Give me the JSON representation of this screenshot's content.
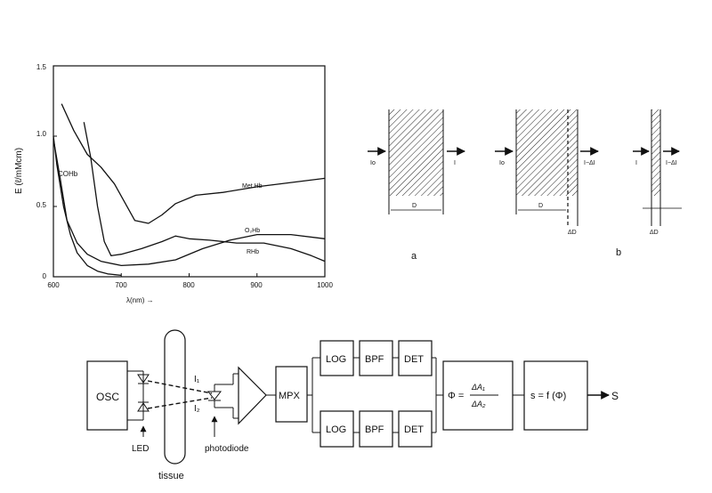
{
  "spectrum_chart": {
    "ylabel": "E (ℓ/mMcm)",
    "xlabel": "λ(nm) →",
    "x_ticks": [
      "600",
      "700",
      "800",
      "900",
      "1000"
    ],
    "y_ticks": [
      "0",
      "0.5",
      "1.0",
      "1.5"
    ],
    "curve_labels": {
      "cohb": "COHb",
      "methb": "Met Hb",
      "o2hb": "O₂Hb",
      "rhb": "RHb"
    }
  },
  "chart_data": {
    "type": "line",
    "xlabel": "λ(nm) →",
    "ylabel": "E (ℓ/mMcm)",
    "xlim": [
      600,
      1000
    ],
    "ylim": [
      0,
      1.5
    ],
    "grid": false,
    "series": [
      {
        "name": "COHb",
        "points": [
          [
            600,
            1.0
          ],
          [
            605,
            0.8
          ],
          [
            615,
            0.5
          ],
          [
            625,
            0.3
          ],
          [
            635,
            0.17
          ],
          [
            650,
            0.08
          ],
          [
            665,
            0.04
          ],
          [
            680,
            0.02
          ],
          [
            700,
            0.01
          ]
        ]
      },
      {
        "name": "Met Hb",
        "points": [
          [
            612,
            1.23
          ],
          [
            630,
            1.04
          ],
          [
            650,
            0.87
          ],
          [
            670,
            0.78
          ],
          [
            690,
            0.66
          ],
          [
            705,
            0.53
          ],
          [
            720,
            0.4
          ],
          [
            740,
            0.38
          ],
          [
            760,
            0.44
          ],
          [
            780,
            0.52
          ],
          [
            810,
            0.58
          ],
          [
            850,
            0.6
          ],
          [
            900,
            0.64
          ],
          [
            950,
            0.67
          ],
          [
            1000,
            0.7
          ]
        ]
      },
      {
        "name": "O₂Hb",
        "points": [
          [
            600,
            0.98
          ],
          [
            610,
            0.7
          ],
          [
            620,
            0.4
          ],
          [
            635,
            0.24
          ],
          [
            650,
            0.16
          ],
          [
            670,
            0.11
          ],
          [
            700,
            0.08
          ],
          [
            740,
            0.09
          ],
          [
            780,
            0.12
          ],
          [
            820,
            0.2
          ],
          [
            860,
            0.26
          ],
          [
            900,
            0.3
          ],
          [
            950,
            0.3
          ],
          [
            1000,
            0.27
          ]
        ]
      },
      {
        "name": "RHb",
        "points": [
          [
            645,
            1.1
          ],
          [
            655,
            0.85
          ],
          [
            665,
            0.5
          ],
          [
            675,
            0.25
          ],
          [
            685,
            0.15
          ],
          [
            700,
            0.16
          ],
          [
            730,
            0.2
          ],
          [
            760,
            0.25
          ],
          [
            780,
            0.29
          ],
          [
            800,
            0.27
          ],
          [
            830,
            0.26
          ],
          [
            870,
            0.24
          ],
          [
            910,
            0.24
          ],
          [
            950,
            0.2
          ],
          [
            980,
            0.15
          ],
          [
            1000,
            0.11
          ]
        ]
      }
    ]
  },
  "absorption": {
    "io": "Io",
    "i": "I",
    "i_minus_di": "I−ΔI",
    "d": "D",
    "delta_d": "ΔD",
    "label_a": "a",
    "label_b": "b"
  },
  "block_diagram": {
    "osc": "OSC",
    "led": "LED",
    "tissue": "tissue",
    "i1": "I₁",
    "i2": "I₂",
    "photodiode": "photodiode",
    "mpx": "MPX",
    "log": "LOG",
    "bpf": "BPF",
    "det": "DET",
    "phi_lhs": "Φ =",
    "phi_num": "ΔA₁",
    "phi_den": "ΔA₂",
    "s_func": "s = f (Φ)",
    "output": "S"
  }
}
